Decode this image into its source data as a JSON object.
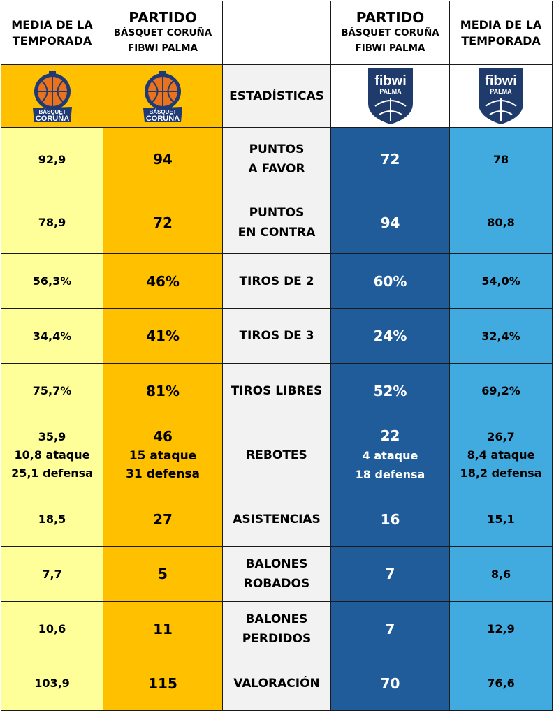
{
  "header": {
    "season_left": [
      "MEDIA DE LA",
      "TEMPORADA"
    ],
    "match_left": {
      "title": "PARTIDO",
      "line1": "BÁSQUET CORUÑA",
      "line2": "FIBWI PALMA"
    },
    "match_right": {
      "title": "PARTIDO",
      "line1": "BÁSQUET CORUÑA",
      "line2": "FIBWI PALMA"
    },
    "season_right": [
      "MEDIA DE LA",
      "TEMPORADA"
    ]
  },
  "logos": {
    "coruna_text": [
      "BÁSQUET",
      "CORUÑA"
    ],
    "palma_text": [
      "fibwi",
      "PALMA"
    ],
    "center_label": "ESTADÍSTICAS"
  },
  "rows": [
    {
      "label": [
        "PUNTOS",
        "A FAVOR"
      ],
      "coruna_season": "92,9",
      "coruna_match": "94",
      "palma_match": "72",
      "palma_season": "78"
    },
    {
      "label": [
        "PUNTOS",
        "EN CONTRA"
      ],
      "coruna_season": "78,9",
      "coruna_match": "72",
      "palma_match": "94",
      "palma_season": "80,8"
    },
    {
      "label": [
        "TIROS DE 2"
      ],
      "coruna_season": "56,3%",
      "coruna_match": "46%",
      "palma_match": "60%",
      "palma_season": "54,0%"
    },
    {
      "label": [
        "TIROS DE 3"
      ],
      "coruna_season": "34,4%",
      "coruna_match": "41%",
      "palma_match": "24%",
      "palma_season": "32,4%"
    },
    {
      "label": [
        "TIROS LIBRES"
      ],
      "coruna_season": "75,7%",
      "coruna_match": "81%",
      "palma_match": "52%",
      "palma_season": "69,2%"
    },
    {
      "label": [
        "REBOTES"
      ],
      "coruna_season_lines": [
        "35,9",
        "10,8 ataque",
        "25,1 defensa"
      ],
      "coruna_match_lines": [
        "46",
        "15 ataque",
        "31 defensa"
      ],
      "palma_match_lines": [
        "22",
        "4 ataque",
        "18 defensa"
      ],
      "palma_season_lines": [
        "26,7",
        "8,4 ataque",
        "18,2 defensa"
      ]
    },
    {
      "label": [
        "ASISTENCIAS"
      ],
      "coruna_season": "18,5",
      "coruna_match": "27",
      "palma_match": "16",
      "palma_season": "15,1"
    },
    {
      "label": [
        "BALONES",
        "ROBADOS"
      ],
      "coruna_season": "7,7",
      "coruna_match": "5",
      "palma_match": "7",
      "palma_season": "8,6"
    },
    {
      "label": [
        "BALONES",
        "PERDIDOS"
      ],
      "coruna_season": "10,6",
      "coruna_match": "11",
      "palma_match": "7",
      "palma_season": "12,9"
    },
    {
      "label": [
        "VALORACIÓN"
      ],
      "coruna_season": "103,9",
      "coruna_match": "115",
      "palma_match": "70",
      "palma_season": "76,6"
    }
  ],
  "colors": {
    "coruna_season_bg": "#FFFF99",
    "coruna_match_bg": "#FFC000",
    "label_bg": "#F2F2F2",
    "palma_match_bg": "#1F5C99",
    "palma_season_bg": "#41ABDF",
    "coruna_logo_blue": "#1F3A75",
    "coruna_logo_orange": "#E8731C",
    "palma_logo_navy": "#1F3B6B"
  }
}
